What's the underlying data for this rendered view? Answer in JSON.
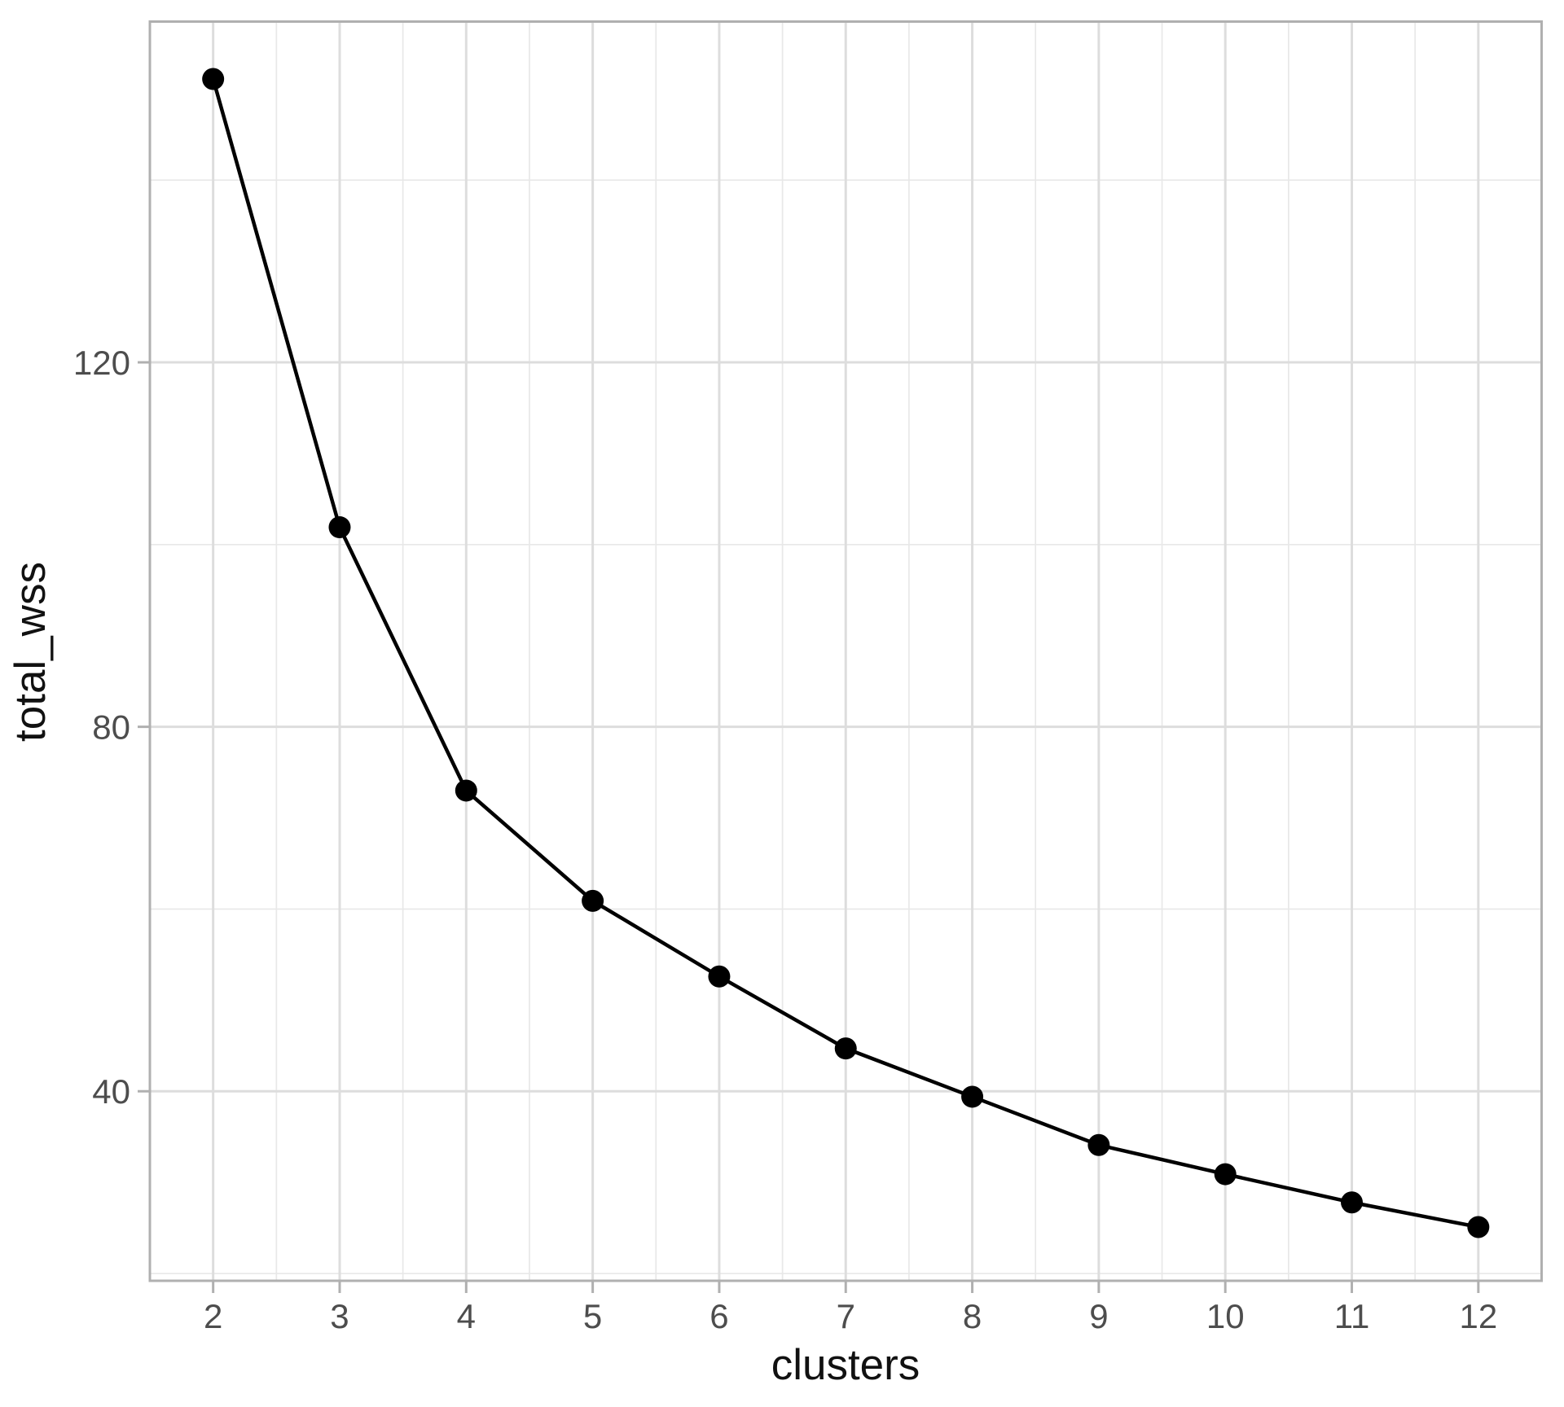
{
  "chart_data": {
    "type": "line",
    "title": "",
    "xlabel": "clusters",
    "ylabel": "total_wss",
    "x": [
      2,
      3,
      4,
      5,
      6,
      7,
      8,
      9,
      10,
      11,
      12
    ],
    "series": [
      {
        "name": "total_wss",
        "values": [
          151.1,
          101.9,
          73.0,
          60.9,
          52.6,
          44.7,
          39.4,
          34.1,
          30.9,
          27.8,
          25.1
        ]
      }
    ],
    "x_tick_labels": [
      "2",
      "3",
      "4",
      "5",
      "6",
      "7",
      "8",
      "9",
      "10",
      "11",
      "12"
    ],
    "x_ticks": [
      2,
      3,
      4,
      5,
      6,
      7,
      8,
      9,
      10,
      11,
      12
    ],
    "x_minor_ticks": [
      2.5,
      3.5,
      4.5,
      5.5,
      6.5,
      7.5,
      8.5,
      9.5,
      10.5,
      11.5
    ],
    "y_tick_labels": [
      "40",
      "80",
      "120"
    ],
    "y_ticks": [
      40,
      80,
      120
    ],
    "y_minor_ticks": [
      20,
      60,
      100,
      140
    ],
    "xlim": [
      1.5,
      12.5
    ],
    "ylim": [
      19.2,
      157.4
    ],
    "grid": "major-and-minor",
    "legend": "none",
    "marker": "filled-circle",
    "colors": {
      "point": "#000000",
      "line": "#000000",
      "grid_major": "#dddddd",
      "grid_minor": "#e8e8e8",
      "panel_border": "#b0b0b0",
      "tick_mark": "#b0b0b0",
      "tick_label": "#4d4d4d",
      "axis_title": "#111111",
      "panel_background": "#ffffff",
      "figure_background": "#ffffff"
    }
  }
}
